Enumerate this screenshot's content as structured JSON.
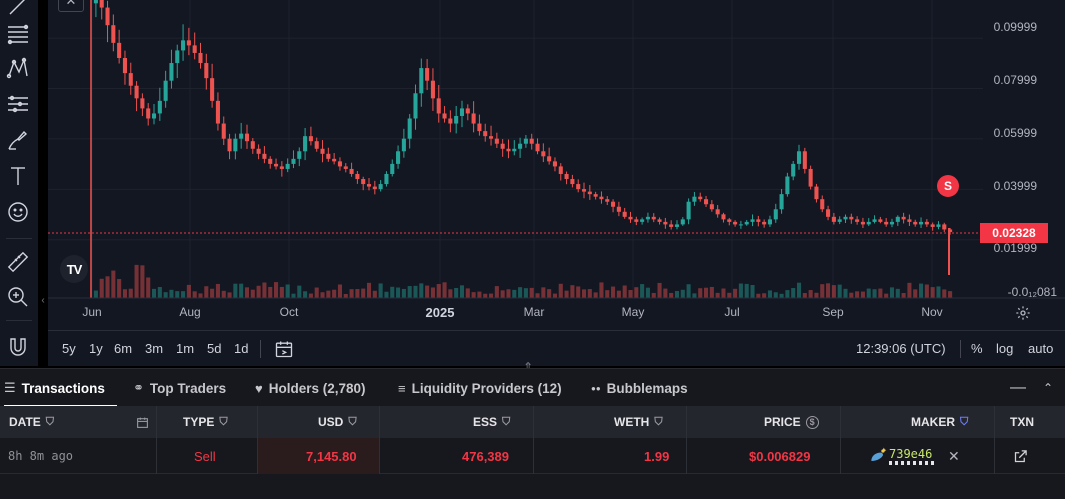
{
  "chart": {
    "price_ticks": [
      "0.09999",
      "0.07999",
      "0.05999",
      "0.03999",
      "0.01999",
      "-0.0₁₂081"
    ],
    "time_ticks": [
      {
        "label": "Jun",
        "bold": false
      },
      {
        "label": "Aug",
        "bold": false
      },
      {
        "label": "Oct",
        "bold": false
      },
      {
        "label": "2025",
        "bold": true
      },
      {
        "label": "Mar",
        "bold": false
      },
      {
        "label": "May",
        "bold": false
      },
      {
        "label": "Jul",
        "bold": false
      },
      {
        "label": "Sep",
        "bold": false
      },
      {
        "label": "Nov",
        "bold": false
      }
    ],
    "current_price": "0.02328",
    "marker_label": "S",
    "logo_text": "TV",
    "close_label": "✕",
    "up_color": "#26a69a",
    "down_color": "#ef5350",
    "price_line_color": "#f23645"
  },
  "chart_data": {
    "type": "candlestick",
    "y_axis": "price",
    "ylim": [
      -0.002,
      0.115
    ],
    "x": "Jun 2024 – Nov 2025",
    "close_series": [
      0.116,
      0.112,
      0.105,
      0.098,
      0.092,
      0.086,
      0.081,
      0.076,
      0.072,
      0.068,
      0.07,
      0.075,
      0.083,
      0.09,
      0.095,
      0.099,
      0.097,
      0.094,
      0.09,
      0.084,
      0.075,
      0.066,
      0.06,
      0.055,
      0.06,
      0.062,
      0.059,
      0.056,
      0.054,
      0.052,
      0.05,
      0.049,
      0.048,
      0.05,
      0.052,
      0.055,
      0.061,
      0.059,
      0.056,
      0.054,
      0.052,
      0.051,
      0.049,
      0.048,
      0.046,
      0.044,
      0.042,
      0.041,
      0.04,
      0.042,
      0.046,
      0.05,
      0.055,
      0.06,
      0.068,
      0.078,
      0.088,
      0.083,
      0.076,
      0.07,
      0.068,
      0.066,
      0.069,
      0.072,
      0.07,
      0.066,
      0.063,
      0.061,
      0.06,
      0.058,
      0.056,
      0.055,
      0.056,
      0.058,
      0.06,
      0.058,
      0.055,
      0.053,
      0.051,
      0.049,
      0.046,
      0.044,
      0.042,
      0.04,
      0.039,
      0.038,
      0.037,
      0.036,
      0.035,
      0.033,
      0.031,
      0.029,
      0.028,
      0.027,
      0.028,
      0.029,
      0.028,
      0.027,
      0.026,
      0.025,
      0.026,
      0.028,
      0.035,
      0.037,
      0.036,
      0.034,
      0.032,
      0.03,
      0.028,
      0.027,
      0.026,
      0.026,
      0.027,
      0.028,
      0.027,
      0.026,
      0.028,
      0.032,
      0.038,
      0.045,
      0.05,
      0.055,
      0.048,
      0.041,
      0.036,
      0.032,
      0.029,
      0.027,
      0.028,
      0.029,
      0.028,
      0.027,
      0.026,
      0.027,
      0.028,
      0.027,
      0.026,
      0.027,
      0.029,
      0.028,
      0.027,
      0.026,
      0.027,
      0.026,
      0.025,
      0.026,
      0.024,
      0.023
    ]
  },
  "range_bar": {
    "ranges": [
      "5y",
      "1y",
      "6m",
      "3m",
      "1m",
      "5d",
      "1d"
    ],
    "clock": "12:39:06 (UTC)",
    "percent": "%",
    "log": "log",
    "auto": "auto"
  },
  "tabs": {
    "items": [
      {
        "name": "transactions",
        "icon": "☰",
        "label": "Transactions",
        "active": true
      },
      {
        "name": "top-traders",
        "icon": "⚭",
        "label": "Top Traders",
        "active": false
      },
      {
        "name": "holders",
        "icon": "♥",
        "label": "Holders (2,780)",
        "active": false
      },
      {
        "name": "liquidity-providers",
        "icon": "≡",
        "label": "Liquidity Providers (12)",
        "active": false
      },
      {
        "name": "bubblemaps",
        "icon": "●●",
        "label": "Bubblemaps",
        "active": false
      }
    ],
    "minimize": "—",
    "expand": "⌃"
  },
  "table": {
    "headers": {
      "date": "DATE",
      "type": "TYPE",
      "usd": "USD",
      "ess": "ESS",
      "weth": "WETH",
      "price": "PRICE",
      "maker": "MAKER",
      "txn": "TXN"
    },
    "rows": [
      {
        "date": "8h 8m ago",
        "type": "Sell",
        "usd": "7,145.80",
        "ess": "476,389",
        "weth": "1.99",
        "price": "$0.006829",
        "maker": "739e46",
        "remove": "✕",
        "txn_icon": "↗"
      }
    ],
    "sell_color": "#f23645",
    "maker_color": "#c8e86b",
    "filter_active_color": "#6f7cf6"
  }
}
